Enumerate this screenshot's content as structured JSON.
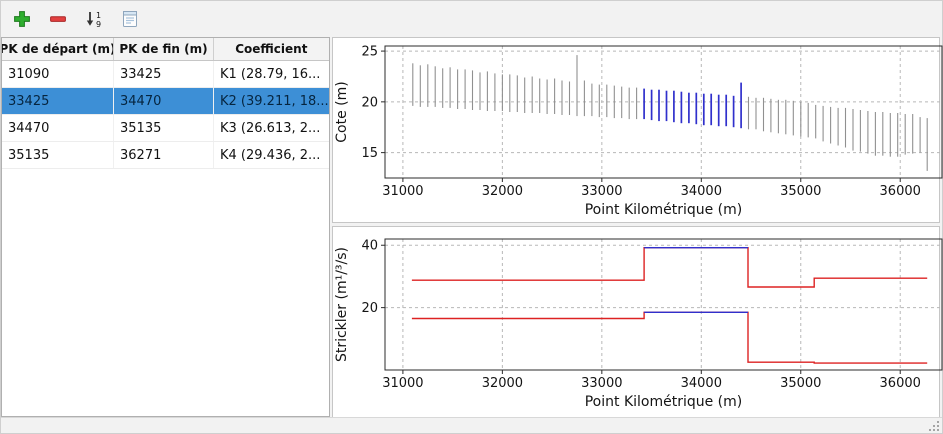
{
  "toolbar": {
    "buttons": [
      {
        "name": "add",
        "icon": "plus-icon"
      },
      {
        "name": "remove",
        "icon": "minus-icon"
      },
      {
        "name": "sort",
        "icon": "sort-numeric-icon"
      },
      {
        "name": "edit",
        "icon": "document-icon"
      }
    ],
    "colors": {
      "add": "#2fae2f",
      "remove": "#e34040"
    }
  },
  "table": {
    "columns": [
      "PK de départ (m)",
      "PK de fin (m)",
      "Coefficient"
    ],
    "rows": [
      {
        "pk_start": "31090",
        "pk_end": "33425",
        "coefficient": "K1 (28.79, 16...",
        "selected": false
      },
      {
        "pk_start": "33425",
        "pk_end": "34470",
        "coefficient": "K2 (39.211, 18...",
        "selected": true
      },
      {
        "pk_start": "34470",
        "pk_end": "35135",
        "coefficient": "K3 (26.613, 2...",
        "selected": false
      },
      {
        "pk_start": "35135",
        "pk_end": "36271",
        "coefficient": "K4 (29.436, 2...",
        "selected": false
      }
    ],
    "selected_bg": "#3d8fd6",
    "selected_fg": "#06253f"
  },
  "chart_data": [
    {
      "type": "line",
      "subtype": "cross-sections",
      "title": "",
      "xlabel": "Point Kilométrique (m)",
      "ylabel": "Cote (m)",
      "xlim": [
        30820,
        36420
      ],
      "ylim": [
        12.5,
        25.5
      ],
      "xticks": [
        31000,
        32000,
        33000,
        34000,
        35000,
        36000
      ],
      "yticks": [
        15,
        20,
        25
      ],
      "grid": true,
      "highlight_range": [
        33425,
        34470
      ],
      "colors": {
        "section": "#909090",
        "highlight": "#3030cc"
      },
      "sections": [
        [
          31100,
          19.6,
          23.8
        ],
        [
          31175,
          19.5,
          23.6
        ],
        [
          31250,
          19.5,
          23.7
        ],
        [
          31325,
          19.5,
          23.5
        ],
        [
          31400,
          19.4,
          23.3
        ],
        [
          31475,
          19.4,
          23.4
        ],
        [
          31550,
          19.3,
          23.2
        ],
        [
          31625,
          19.3,
          23.2
        ],
        [
          31700,
          19.2,
          23.1
        ],
        [
          31775,
          19.2,
          22.9
        ],
        [
          31850,
          19.1,
          23.0
        ],
        [
          31925,
          19.1,
          22.8
        ],
        [
          32000,
          19.1,
          22.7
        ],
        [
          32075,
          19.0,
          22.7
        ],
        [
          32150,
          19.0,
          22.6
        ],
        [
          32225,
          18.9,
          22.4
        ],
        [
          32300,
          18.9,
          22.5
        ],
        [
          32375,
          18.9,
          22.3
        ],
        [
          32450,
          18.8,
          22.2
        ],
        [
          32525,
          18.8,
          22.3
        ],
        [
          32600,
          18.7,
          22.1
        ],
        [
          32675,
          18.7,
          22.0
        ],
        [
          32750,
          18.6,
          24.6
        ],
        [
          32825,
          18.6,
          22.1
        ],
        [
          32900,
          18.6,
          21.8
        ],
        [
          32975,
          18.5,
          21.7
        ],
        [
          33050,
          18.5,
          21.7
        ],
        [
          33125,
          18.4,
          21.6
        ],
        [
          33200,
          18.4,
          21.5
        ],
        [
          33275,
          18.3,
          21.4
        ],
        [
          33350,
          18.3,
          21.4
        ],
        [
          33425,
          18.3,
          21.3
        ],
        [
          33500,
          18.2,
          21.2
        ],
        [
          33575,
          18.1,
          21.2
        ],
        [
          33650,
          18.1,
          21.1
        ],
        [
          33725,
          18.0,
          21.1
        ],
        [
          33800,
          17.9,
          21.0
        ],
        [
          33875,
          17.9,
          20.9
        ],
        [
          33950,
          17.8,
          20.9
        ],
        [
          34025,
          17.7,
          20.8
        ],
        [
          34100,
          17.7,
          20.8
        ],
        [
          34175,
          17.6,
          20.7
        ],
        [
          34250,
          17.6,
          20.7
        ],
        [
          34325,
          17.5,
          20.6
        ],
        [
          34400,
          17.4,
          21.9
        ],
        [
          34475,
          17.3,
          20.5
        ],
        [
          34550,
          17.3,
          20.4
        ],
        [
          34625,
          17.1,
          20.4
        ],
        [
          34700,
          17.0,
          20.3
        ],
        [
          34775,
          16.9,
          20.2
        ],
        [
          34850,
          16.8,
          20.2
        ],
        [
          34925,
          16.7,
          20.1
        ],
        [
          35000,
          16.6,
          20.0
        ],
        [
          35075,
          16.5,
          19.9
        ],
        [
          35150,
          16.4,
          19.7
        ],
        [
          35225,
          16.1,
          19.6
        ],
        [
          35300,
          15.9,
          19.5
        ],
        [
          35375,
          15.7,
          19.4
        ],
        [
          35450,
          15.5,
          19.4
        ],
        [
          35525,
          15.2,
          19.3
        ],
        [
          35600,
          15.1,
          19.2
        ],
        [
          35675,
          14.9,
          19.1
        ],
        [
          35750,
          14.7,
          19.0
        ],
        [
          35825,
          14.7,
          19.0
        ],
        [
          35900,
          14.6,
          18.9
        ],
        [
          35975,
          14.6,
          18.9
        ],
        [
          36050,
          14.8,
          18.8
        ],
        [
          36125,
          14.9,
          18.8
        ],
        [
          36200,
          15.0,
          18.5
        ],
        [
          36271,
          13.2,
          18.4
        ]
      ]
    },
    {
      "type": "line",
      "subtype": "steps",
      "title": "",
      "xlabel": "Point Kilométrique (m)",
      "ylabel": "Strickler (m¹/³/s)",
      "xlim": [
        30820,
        36420
      ],
      "ylim": [
        0,
        42
      ],
      "xticks": [
        31000,
        32000,
        33000,
        34000,
        35000,
        36000
      ],
      "yticks": [
        20,
        40
      ],
      "grid": true,
      "series": [
        {
          "name": "minor-bed-strickler",
          "color": "#dd2222",
          "points": [
            [
              31090,
              28.79
            ],
            [
              33425,
              28.79
            ],
            [
              33425,
              39.211
            ],
            [
              34470,
              39.211
            ],
            [
              34470,
              26.613
            ],
            [
              35135,
              26.613
            ],
            [
              35135,
              29.436
            ],
            [
              36271,
              29.436
            ]
          ]
        },
        {
          "name": "floodplain-strickler",
          "color": "#dd2222",
          "points": [
            [
              31090,
              16.5
            ],
            [
              33425,
              16.5
            ],
            [
              33425,
              18.5
            ],
            [
              34470,
              18.5
            ],
            [
              34470,
              2.5
            ],
            [
              35135,
              2.5
            ],
            [
              35135,
              2.2
            ],
            [
              36271,
              2.2
            ]
          ]
        },
        {
          "name": "selected-minor-bed",
          "color": "#3030cc",
          "points": [
            [
              33425,
              39.211
            ],
            [
              34470,
              39.211
            ]
          ]
        },
        {
          "name": "selected-floodplain",
          "color": "#3030cc",
          "points": [
            [
              33425,
              18.5
            ],
            [
              34470,
              18.5
            ]
          ]
        }
      ]
    }
  ]
}
